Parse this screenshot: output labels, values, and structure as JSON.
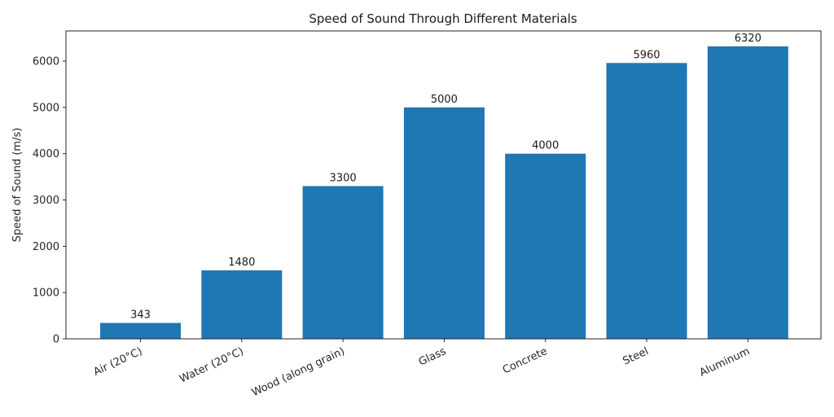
{
  "chart_data": {
    "type": "bar",
    "title": "Speed of Sound Through Different Materials",
    "xlabel": "",
    "ylabel": "Speed of Sound (m/s)",
    "categories": [
      "Air (20°C)",
      "Water (20°C)",
      "Wood (along grain)",
      "Glass",
      "Concrete",
      "Steel",
      "Aluminum"
    ],
    "values": [
      343,
      1480,
      3300,
      5000,
      4000,
      5960,
      6320
    ],
    "data_labels": [
      "343",
      "1480",
      "3300",
      "5000",
      "4000",
      "5960",
      "6320"
    ],
    "ylim": [
      0,
      6652
    ],
    "yticks": [
      0,
      1000,
      2000,
      3000,
      4000,
      5000,
      6000
    ],
    "ytick_labels": [
      "0",
      "1000",
      "2000",
      "3000",
      "4000",
      "5000",
      "6000"
    ],
    "grid": false,
    "legend": null,
    "bar_color": "#1f77b4",
    "xtick_rotation": -25
  }
}
